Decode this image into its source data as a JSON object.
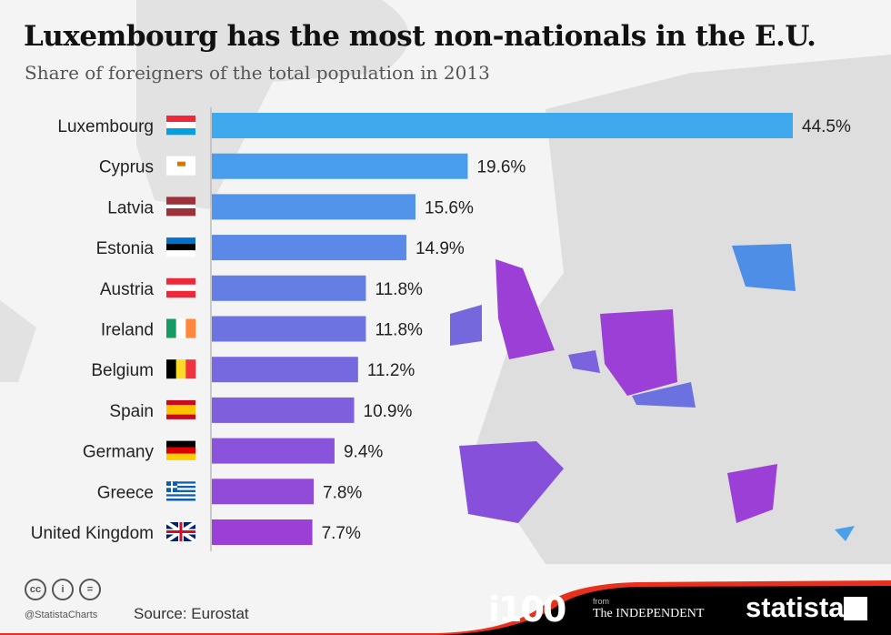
{
  "title": "Luxembourg has the most non-nationals in the E.U.",
  "subtitle": "Share of foreigners of the total population in 2013",
  "footer": {
    "handle": "@StatistaCharts",
    "source": "Source: Eurostat",
    "license_icons": [
      "cc-icon",
      "attribution-icon",
      "no-derivatives-icon"
    ],
    "partner_logo": "i100",
    "partner_from": "from",
    "partner_name": "The INDEPENDENT",
    "brand": "statista"
  },
  "colors": {
    "bar_top": "#3fa9ee",
    "bar_bottom": "#9b3fd6",
    "footer": "#000000",
    "footer_accent": "#e8301c"
  },
  "chart_data": {
    "type": "bar",
    "orientation": "horizontal",
    "title": "Luxembourg has the most non-nationals in the E.U.",
    "subtitle": "Share of foreigners of the total population in 2013",
    "unit": "%",
    "categories": [
      "Luxembourg",
      "Cyprus",
      "Latvia",
      "Estonia",
      "Austria",
      "Ireland",
      "Belgium",
      "Spain",
      "Germany",
      "Greece",
      "United Kingdom"
    ],
    "values": [
      44.5,
      19.6,
      15.6,
      14.9,
      11.8,
      11.8,
      11.2,
      10.9,
      9.4,
      7.8,
      7.7
    ],
    "labels": [
      "44.5%",
      "19.6%",
      "15.6%",
      "14.9%",
      "11.8%",
      "11.8%",
      "11.2%",
      "10.9%",
      "9.4%",
      "7.8%",
      "7.7%"
    ],
    "flags": [
      "luxembourg-flag",
      "cyprus-flag",
      "latvia-flag",
      "estonia-flag",
      "austria-flag",
      "ireland-flag",
      "belgium-flag",
      "spain-flag",
      "germany-flag",
      "greece-flag",
      "uk-flag"
    ],
    "grid": false
  }
}
